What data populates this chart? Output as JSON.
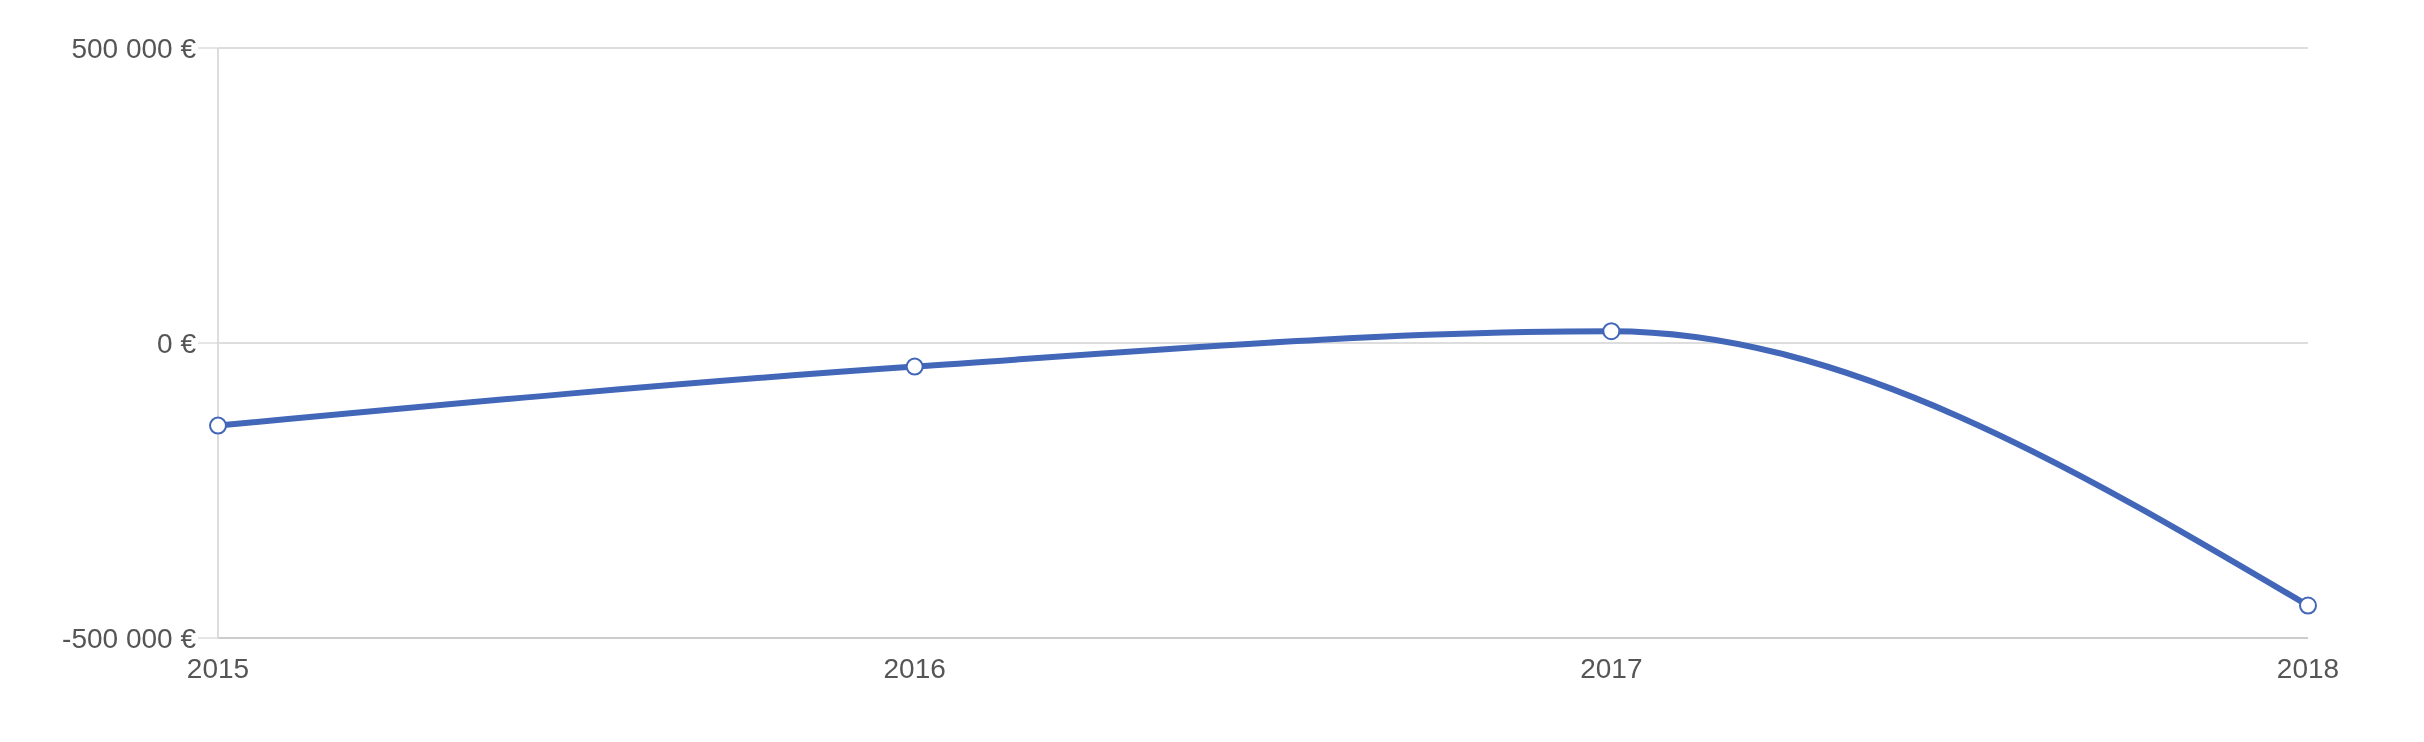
{
  "chart_data": {
    "type": "line",
    "categories": [
      "2015",
      "2016",
      "2017",
      "2018"
    ],
    "series": [
      {
        "color": "#4266b8",
        "values": [
          -140000,
          -40000,
          20000,
          -445000
        ]
      }
    ],
    "ylim": [
      -500000,
      500000
    ],
    "yticks": [
      {
        "value": -500000,
        "label": "-500 000 €"
      },
      {
        "value": 0,
        "label": "0 €"
      },
      {
        "value": 500000,
        "label": "500 000 €"
      }
    ],
    "grid": "y",
    "marker": "circle",
    "line_style": "solid",
    "legend": false
  }
}
